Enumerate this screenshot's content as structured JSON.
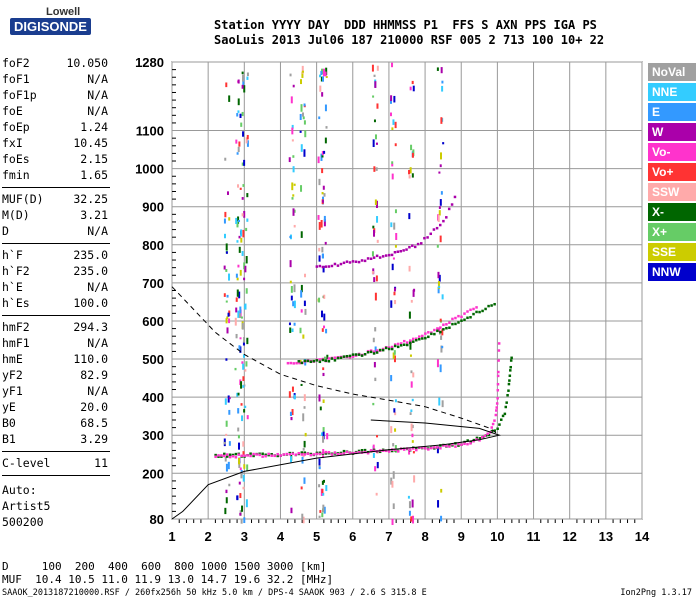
{
  "logo": {
    "line1": "Lowell",
    "line2": "DIGISONDE"
  },
  "header": {
    "labels": "Station YYYY DAY  DDD HHMMSS P1  FFS S AXN PPS IGA PS",
    "values": "SaoLuis 2013 Jul06 187 210000 RSF 005 2 713 100 10+ 22"
  },
  "params": [
    {
      "k": "foF2",
      "v": "10.050"
    },
    {
      "k": "foF1",
      "v": "N/A"
    },
    {
      "k": "foF1p",
      "v": "N/A"
    },
    {
      "k": "foE",
      "v": "N/A"
    },
    {
      "k": "foEp",
      "v": "1.24"
    },
    {
      "k": "fxI",
      "v": "10.45"
    },
    {
      "k": "foEs",
      "v": "2.15"
    },
    {
      "k": "fmin",
      "v": "1.65"
    },
    {
      "k": "MUF(D)",
      "v": "32.25"
    },
    {
      "k": "M(D)",
      "v": "3.21"
    },
    {
      "k": "D",
      "v": "N/A"
    },
    {
      "k": "h`F",
      "v": "235.0"
    },
    {
      "k": "h`F2",
      "v": "235.0"
    },
    {
      "k": "h`E",
      "v": "N/A"
    },
    {
      "k": "h`Es",
      "v": "100.0"
    },
    {
      "k": "hmF2",
      "v": "294.3"
    },
    {
      "k": "hmF1",
      "v": "N/A"
    },
    {
      "k": "hmE",
      "v": "110.0"
    },
    {
      "k": "yF2",
      "v": "82.9"
    },
    {
      "k": "yF1",
      "v": "N/A"
    },
    {
      "k": "yE",
      "v": "20.0"
    },
    {
      "k": "B0",
      "v": "68.5"
    },
    {
      "k": "B1",
      "v": "3.29"
    },
    {
      "k": "C-level",
      "v": "11"
    }
  ],
  "auto": {
    "line1": "Auto:",
    "line2": "Artist5",
    "line3": "500200"
  },
  "legend": [
    {
      "name": "NoVal",
      "color": "#a0a0a0"
    },
    {
      "name": "NNE",
      "color": "#33ccff"
    },
    {
      "name": "E",
      "color": "#3399ff"
    },
    {
      "name": "W",
      "color": "#aa00aa"
    },
    {
      "name": "Vo-",
      "color": "#ff33cc"
    },
    {
      "name": "Vo+",
      "color": "#ff3333"
    },
    {
      "name": "SSW",
      "color": "#ffaaaa"
    },
    {
      "name": "X-",
      "color": "#006600"
    },
    {
      "name": "X+",
      "color": "#66cc66"
    },
    {
      "name": "SSE",
      "color": "#cccc00"
    },
    {
      "name": "NNW",
      "color": "#0000cc"
    }
  ],
  "footer": {
    "d_row": "D     100  200  400  600  800 1000 1500 3000 [km]",
    "muf_row": "MUF  10.4 10.5 11.0 11.9 13.0 14.7 19.6 32.2 [MHz]",
    "file": "SAAOK_2013187210000.RSF / 260fx256h 50 kHz 5.0 km / DPS-4 SAAOK 903 / 2.6 S 315.8 E",
    "version": "Ion2Png 1.3.17"
  },
  "chart_data": {
    "type": "scatter",
    "xlim": [
      1,
      14
    ],
    "ylim": [
      80,
      1280
    ],
    "x_ticks": [
      1,
      2,
      3,
      4,
      5,
      6,
      7,
      8,
      9,
      10,
      11,
      12,
      13,
      14
    ],
    "y_ticks": [
      80,
      200,
      300,
      400,
      500,
      600,
      700,
      800,
      900,
      1000,
      1100,
      1280
    ],
    "grid": true,
    "series": [
      {
        "name": "X-",
        "color": "#006600",
        "points": [
          [
            2.2,
            248
          ],
          [
            3,
            248
          ],
          [
            4,
            250
          ],
          [
            5,
            253
          ],
          [
            6,
            256
          ],
          [
            7,
            261
          ],
          [
            8,
            267
          ],
          [
            9,
            278
          ],
          [
            9.6,
            295
          ],
          [
            10,
            320
          ],
          [
            10.2,
            360
          ],
          [
            10.3,
            420
          ],
          [
            10.35,
            470
          ],
          [
            10.4,
            520
          ]
        ]
      },
      {
        "name": "Vo-",
        "color": "#ff33cc",
        "points": [
          [
            2.2,
            246
          ],
          [
            3,
            247
          ],
          [
            4,
            249
          ],
          [
            5,
            252
          ],
          [
            6,
            255
          ],
          [
            7,
            260
          ],
          [
            8,
            266
          ],
          [
            9,
            276
          ],
          [
            9.5,
            290
          ],
          [
            9.8,
            310
          ],
          [
            9.95,
            350
          ],
          [
            10,
            400
          ],
          [
            10.02,
            470
          ],
          [
            10.05,
            570
          ]
        ]
      },
      {
        "name": "Vo-",
        "color": "#ff33cc",
        "points": [
          [
            4.2,
            490
          ],
          [
            5,
            495
          ],
          [
            6,
            510
          ],
          [
            7,
            530
          ],
          [
            8,
            565
          ],
          [
            9,
            615
          ],
          [
            9.5,
            645
          ]
        ]
      },
      {
        "name": "X-",
        "color": "#006600",
        "points": [
          [
            4.5,
            492
          ],
          [
            5.5,
            500
          ],
          [
            6.5,
            517
          ],
          [
            7.5,
            540
          ],
          [
            8.5,
            578
          ],
          [
            9.5,
            625
          ],
          [
            10,
            650
          ]
        ]
      },
      {
        "name": "W",
        "color": "#aa00aa",
        "points": [
          [
            5,
            740
          ],
          [
            6,
            755
          ],
          [
            7,
            775
          ],
          [
            7.8,
            800
          ],
          [
            8.5,
            860
          ],
          [
            8.9,
            940
          ]
        ]
      }
    ],
    "profile_solid": [
      [
        1,
        80
      ],
      [
        1.3,
        100
      ],
      [
        2,
        170
      ],
      [
        3,
        205
      ],
      [
        5,
        240
      ],
      [
        7,
        262
      ],
      [
        8.5,
        275
      ],
      [
        9.5,
        288
      ],
      [
        10.05,
        300
      ],
      [
        9.5,
        318
      ],
      [
        8,
        332
      ],
      [
        6.5,
        340
      ]
    ],
    "profile_dashed": [
      [
        1,
        690
      ],
      [
        1.5,
        640
      ],
      [
        2.2,
        570
      ],
      [
        3,
        512
      ],
      [
        4,
        460
      ],
      [
        5,
        430
      ],
      [
        6,
        408
      ],
      [
        7,
        392
      ],
      [
        8,
        375
      ],
      [
        9,
        345
      ],
      [
        9.8,
        318
      ],
      [
        10.05,
        300
      ]
    ],
    "noise_columns": [
      2.5,
      2.8,
      2.9,
      3.0,
      4.3,
      4.6,
      5.1,
      5.2,
      6.6,
      7.1,
      7.6,
      8.4
    ]
  }
}
